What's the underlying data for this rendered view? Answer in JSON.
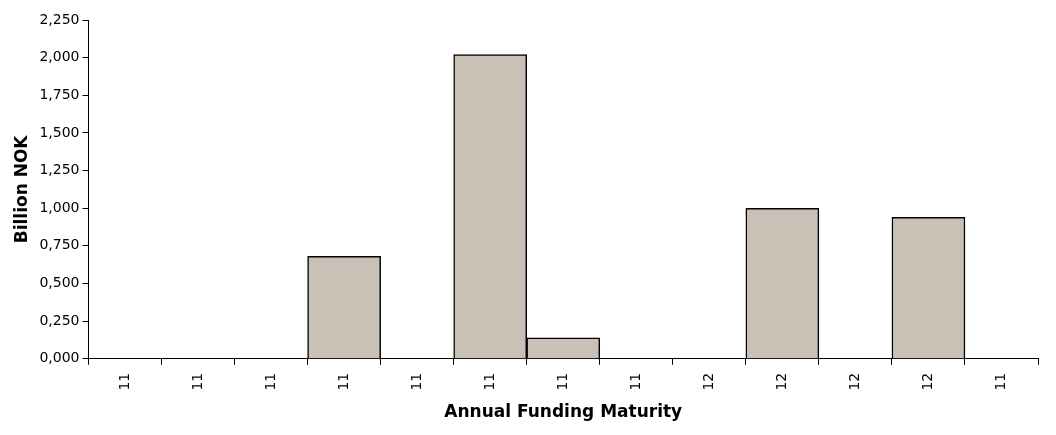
{
  "chart_data": {
    "type": "bar",
    "xlabel": "Annual Funding Maturity",
    "ylabel": "Billion NOK",
    "categories": [
      "11",
      "11",
      "11",
      "11",
      "11",
      "11",
      "11",
      "11",
      "12",
      "12",
      "12",
      "12",
      "11"
    ],
    "values": [
      0,
      0,
      0,
      0.68,
      0,
      2.02,
      0.14,
      0,
      0,
      1.0,
      0,
      0.94,
      0
    ],
    "color": "#c9c0b6",
    "ylim": [
      0,
      2.25
    ],
    "yticks": [
      {
        "value": 0,
        "label": "0,000"
      },
      {
        "value": 0.25,
        "label": "0,250"
      },
      {
        "value": 0.5,
        "label": "0,500"
      },
      {
        "value": 0.75,
        "label": "0,750"
      },
      {
        "value": 1,
        "label": "1,000"
      },
      {
        "value": 1.25,
        "label": "1,250"
      },
      {
        "value": 1.5,
        "label": "1,500"
      },
      {
        "value": 1.75,
        "label": "1,750"
      },
      {
        "value": 2,
        "label": "2,000"
      },
      {
        "value": 2.25,
        "label": "2,250"
      }
    ],
    "grid": false,
    "legend": false
  }
}
